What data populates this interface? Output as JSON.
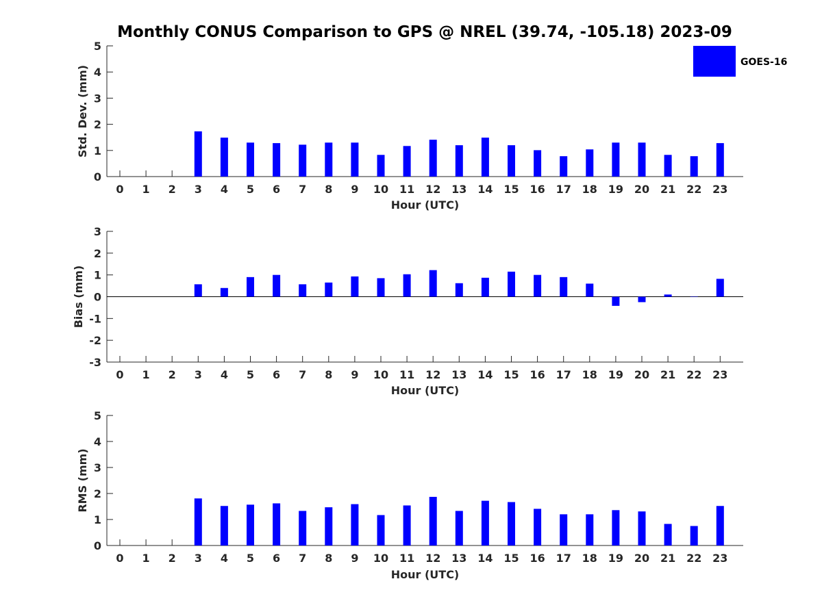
{
  "title": "Monthly CONUS Comparison to GPS @ NREL (39.74, -105.18) 2023-09",
  "legend": {
    "label": "GOES-16",
    "color": "#0000ff",
    "placement": "top-right"
  },
  "chart_data": [
    {
      "type": "bar",
      "categories": [
        "0",
        "1",
        "2",
        "3",
        "4",
        "5",
        "6",
        "7",
        "8",
        "9",
        "10",
        "11",
        "12",
        "13",
        "14",
        "15",
        "16",
        "17",
        "18",
        "19",
        "20",
        "21",
        "22",
        "23"
      ],
      "series": [
        {
          "name": "GOES-16",
          "values": [
            null,
            null,
            null,
            1.73,
            1.49,
            1.3,
            1.28,
            1.22,
            1.3,
            1.3,
            0.83,
            1.17,
            1.41,
            1.2,
            1.49,
            1.2,
            1.01,
            0.78,
            1.04,
            1.3,
            1.3,
            0.83,
            0.78,
            1.28
          ]
        }
      ],
      "xlabel": "Hour (UTC)",
      "ylabel": "Std. Dev. (mm)",
      "ylim": [
        0,
        5
      ],
      "yticks": [
        0,
        1,
        2,
        3,
        4,
        5
      ],
      "grid": false
    },
    {
      "type": "bar",
      "categories": [
        "0",
        "1",
        "2",
        "3",
        "4",
        "5",
        "6",
        "7",
        "8",
        "9",
        "10",
        "11",
        "12",
        "13",
        "14",
        "15",
        "16",
        "17",
        "18",
        "19",
        "20",
        "21",
        "22",
        "23"
      ],
      "series": [
        {
          "name": "GOES-16",
          "values": [
            null,
            null,
            null,
            0.57,
            0.4,
            0.9,
            1.0,
            0.57,
            0.65,
            0.93,
            0.85,
            1.03,
            1.22,
            0.62,
            0.87,
            1.15,
            1.0,
            0.9,
            0.6,
            -0.42,
            -0.25,
            0.1,
            0.0,
            0.82
          ]
        }
      ],
      "xlabel": "Hour (UTC)",
      "ylabel": "Bias (mm)",
      "ylim": [
        -3,
        3
      ],
      "yticks": [
        -3,
        -2,
        -1,
        0,
        1,
        2,
        3
      ],
      "zero_line": true,
      "grid": false
    },
    {
      "type": "bar",
      "categories": [
        "0",
        "1",
        "2",
        "3",
        "4",
        "5",
        "6",
        "7",
        "8",
        "9",
        "10",
        "11",
        "12",
        "13",
        "14",
        "15",
        "16",
        "17",
        "18",
        "19",
        "20",
        "21",
        "22",
        "23"
      ],
      "series": [
        {
          "name": "GOES-16",
          "values": [
            null,
            null,
            null,
            1.81,
            1.52,
            1.57,
            1.62,
            1.33,
            1.47,
            1.59,
            1.17,
            1.54,
            1.87,
            1.33,
            1.72,
            1.67,
            1.41,
            1.2,
            1.2,
            1.36,
            1.31,
            0.83,
            0.75,
            1.52
          ]
        }
      ],
      "xlabel": "Hour (UTC)",
      "ylabel": "RMS (mm)",
      "ylim": [
        0,
        5
      ],
      "yticks": [
        0,
        1,
        2,
        3,
        4,
        5
      ],
      "grid": false
    }
  ]
}
